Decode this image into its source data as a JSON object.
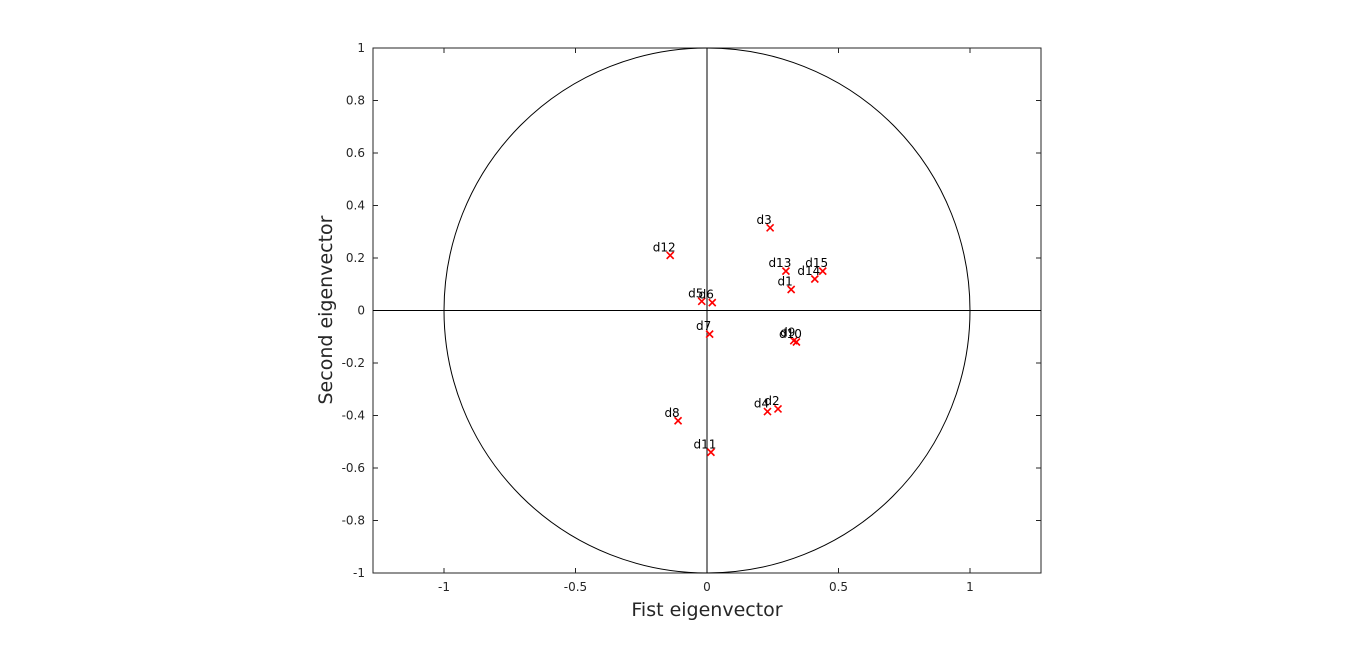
{
  "chart_data": {
    "type": "scatter",
    "title": "",
    "xlabel": "Fist eigenvector",
    "ylabel": "Second eigenvector",
    "xlim": [
      -1.27,
      1.27
    ],
    "ylim": [
      -1,
      1
    ],
    "x_ticks": [
      -1,
      -0.5,
      0,
      0.5,
      1
    ],
    "x_tick_labels": [
      "-1",
      "-0.5",
      "0",
      "0.5",
      "1"
    ],
    "y_ticks": [
      -1,
      -0.8,
      -0.6,
      -0.4,
      -0.2,
      0,
      0.2,
      0.4,
      0.6,
      0.8,
      1
    ],
    "y_tick_labels": [
      "-1",
      "-0.8",
      "-0.6",
      "-0.4",
      "-0.2",
      "0",
      "0.2",
      "0.4",
      "0.6",
      "0.8",
      "1"
    ],
    "grid": false,
    "reference_shapes": [
      "unit circle",
      "horizontal axis line y=0",
      "vertical axis line x=0"
    ],
    "marker": "x",
    "marker_color": "#ff0000",
    "points": [
      {
        "label": "d1",
        "x": 0.32,
        "y": 0.08
      },
      {
        "label": "d2",
        "x": 0.27,
        "y": -0.375
      },
      {
        "label": "d3",
        "x": 0.24,
        "y": 0.315
      },
      {
        "label": "d4",
        "x": 0.23,
        "y": -0.385
      },
      {
        "label": "d5",
        "x": -0.02,
        "y": 0.035
      },
      {
        "label": "d6",
        "x": 0.02,
        "y": 0.03
      },
      {
        "label": "d7",
        "x": 0.01,
        "y": -0.09
      },
      {
        "label": "d8",
        "x": -0.11,
        "y": -0.42
      },
      {
        "label": "d9",
        "x": 0.33,
        "y": -0.115
      },
      {
        "label": "d10",
        "x": 0.34,
        "y": -0.12
      },
      {
        "label": "d11",
        "x": 0.015,
        "y": -0.54
      },
      {
        "label": "d12",
        "x": -0.14,
        "y": 0.21
      },
      {
        "label": "d13",
        "x": 0.3,
        "y": 0.15
      },
      {
        "label": "d14",
        "x": 0.41,
        "y": 0.12
      },
      {
        "label": "d15",
        "x": 0.44,
        "y": 0.15
      }
    ]
  }
}
